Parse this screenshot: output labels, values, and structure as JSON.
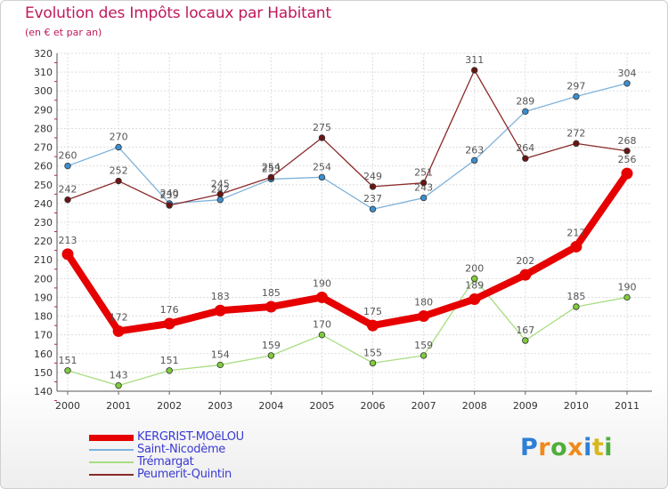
{
  "chart_data": {
    "type": "line",
    "title": "Evolution des Impôts locaux par Habitant",
    "subtitle": "(en € et par an)",
    "categories": [
      "2000",
      "2001",
      "2002",
      "2003",
      "2004",
      "2005",
      "2006",
      "2007",
      "2008",
      "2009",
      "2010",
      "2011"
    ],
    "y_ticks": [
      140,
      150,
      160,
      170,
      180,
      190,
      200,
      210,
      220,
      230,
      240,
      250,
      260,
      270,
      280,
      290,
      300,
      310,
      320
    ],
    "ylim": [
      140,
      320
    ],
    "grid": true,
    "legend_position": "bottom-left",
    "series": [
      {
        "name": "KERGRIST-MOëLOU",
        "color": "#e60000",
        "marker_color": "#e60000",
        "emphasis": true,
        "values": [
          213,
          172,
          176,
          183,
          185,
          190,
          175,
          180,
          189,
          202,
          217,
          256
        ],
        "labels": [
          "213",
          "172",
          "176",
          "183",
          "185",
          "190",
          "175",
          "180",
          "189",
          "202",
          "217",
          "256"
        ]
      },
      {
        "name": "Saint-Nicodème",
        "color": "#7fb3da",
        "marker_color": "#3a8fd0",
        "emphasis": false,
        "values": [
          260,
          270,
          240,
          242,
          253,
          254,
          237,
          243,
          263,
          289,
          297,
          304
        ],
        "labels": [
          "260",
          "270",
          "240",
          "242",
          "253",
          "254",
          "237",
          "243",
          "263",
          "289",
          "297",
          "304"
        ]
      },
      {
        "name": "Trémargat",
        "color": "#a8dd80",
        "marker_color": "#7fcc3a",
        "emphasis": false,
        "values": [
          151,
          143,
          151,
          154,
          159,
          170,
          155,
          159,
          200,
          167,
          185,
          190
        ],
        "labels": [
          "151",
          "143",
          "151",
          "154",
          "159",
          "170",
          "155",
          "159",
          "200",
          "167",
          "185",
          "190"
        ]
      },
      {
        "name": "Peumerit-Quintin",
        "color": "#8b2a2a",
        "marker_color": "#6b1414",
        "emphasis": false,
        "values": [
          242,
          252,
          239,
          245,
          254,
          275,
          249,
          251,
          311,
          264,
          272,
          268
        ],
        "labels": [
          "242",
          "252",
          "239",
          "245",
          "254",
          "275",
          "249",
          "251",
          "311",
          "264",
          "272",
          "268"
        ]
      }
    ]
  },
  "branding": {
    "letters": [
      "P",
      "r",
      "o",
      "x",
      "i",
      "t",
      "i"
    ],
    "colors": [
      "#2e7fd6",
      "#f08a1c",
      "#4fae3a",
      "#f08a1c",
      "#2e7fd6",
      "#d8b81a",
      "#4fae3a"
    ]
  }
}
